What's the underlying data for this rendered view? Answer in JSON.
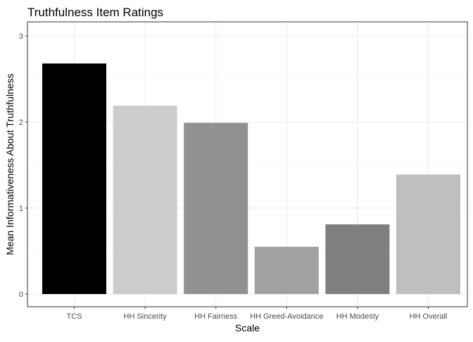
{
  "chart_data": {
    "type": "bar",
    "title": "Truthfulness Item Ratings",
    "xlabel": "Scale",
    "ylabel": "Mean Informativeness About Truthfulness",
    "categories": [
      "TCS",
      "HH Sincerity",
      "HH Fairness",
      "HH Greed-Avoidance",
      "HH Modesty",
      "HH Overall"
    ],
    "values": [
      2.68,
      2.19,
      1.99,
      0.55,
      0.81,
      1.39
    ],
    "bar_colors": [
      "#000000",
      "#cccccc",
      "#919191",
      "#a1a1a1",
      "#7f7f7f",
      "#bfbfbf"
    ],
    "ylim": [
      0,
      3
    ],
    "yticks": [
      0,
      1,
      2,
      3
    ],
    "grid": true
  }
}
